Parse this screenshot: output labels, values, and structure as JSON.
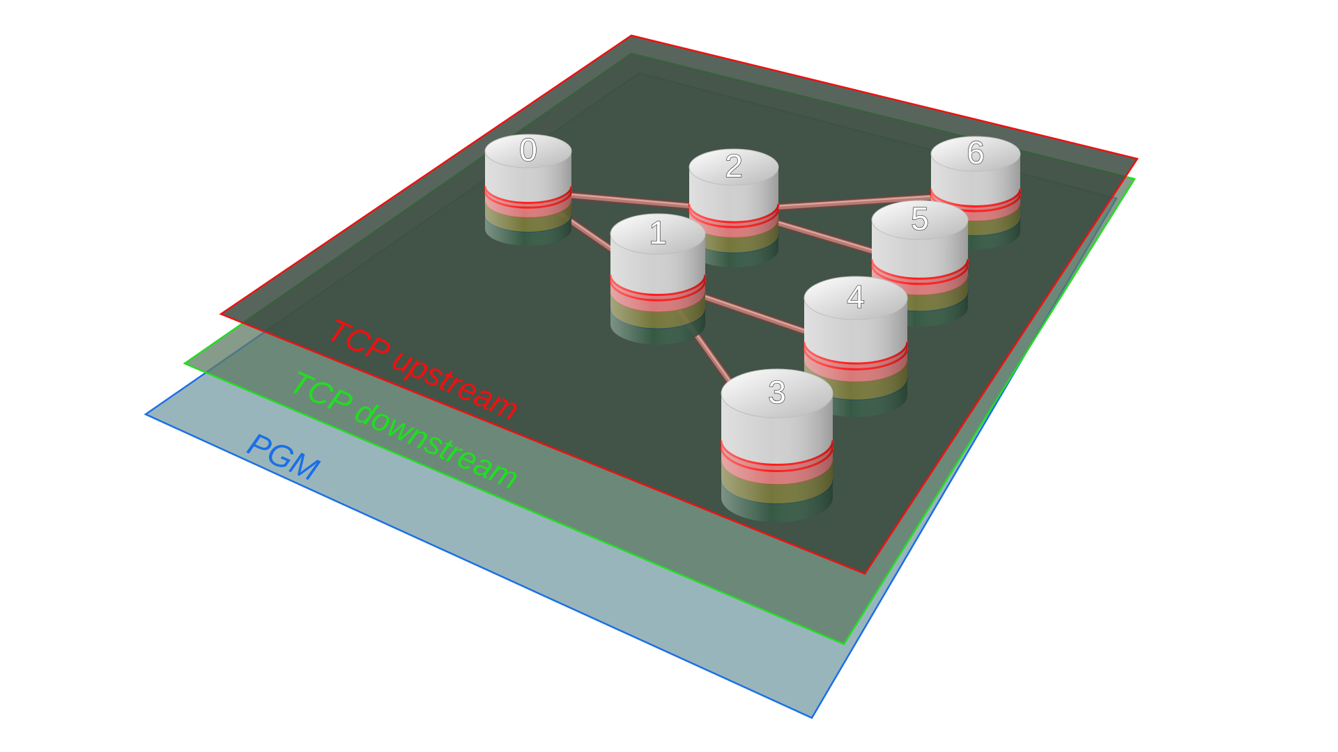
{
  "planes": [
    {
      "id": "pgm",
      "label": "PGM",
      "edge_color": "#1a6fe6",
      "fill_color": "#7fa3ab",
      "fill_opacity": 0.8,
      "text_color": "#1a6fe6"
    },
    {
      "id": "tcp-downstream",
      "label": "TCP downstream",
      "edge_color": "#22dd22",
      "fill_color": "#5d7a63",
      "fill_opacity": 0.75,
      "text_color": "#22dd22"
    },
    {
      "id": "tcp-upstream",
      "label": "TCP upstream",
      "edge_color": "#ee1111",
      "fill_color": "#3b4a40",
      "fill_opacity": 0.85,
      "text_color": "#ee1111"
    }
  ],
  "nodes": [
    {
      "id": "0",
      "label": "0"
    },
    {
      "id": "1",
      "label": "1"
    },
    {
      "id": "2",
      "label": "2"
    },
    {
      "id": "3",
      "label": "3"
    },
    {
      "id": "4",
      "label": "4"
    },
    {
      "id": "5",
      "label": "5"
    },
    {
      "id": "6",
      "label": "6"
    }
  ],
  "links": [
    [
      "0",
      "1"
    ],
    [
      "0",
      "2"
    ],
    [
      "2",
      "6"
    ],
    [
      "2",
      "5"
    ],
    [
      "1",
      "4"
    ],
    [
      "1",
      "3"
    ]
  ],
  "colors": {
    "layer_top": "#d6d6d6",
    "layer_red": "#d87979",
    "layer_red_edge": "#ff1a1a",
    "layer_olive": "#7a7a3a",
    "layer_green": "#355a44",
    "link": "#b77b72"
  }
}
